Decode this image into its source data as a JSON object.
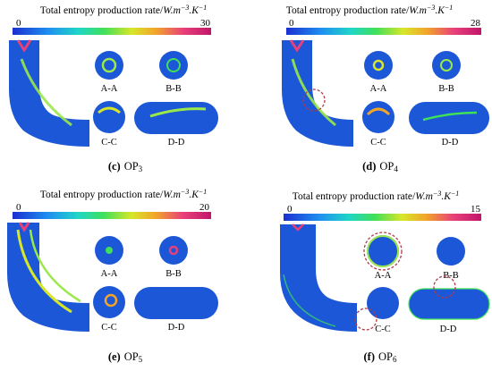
{
  "panels": [
    {
      "caption_letter": "(c)",
      "caption_name": "OP",
      "caption_sub": "3",
      "colorbar_title": "Total entropy production rate/",
      "colorbar_unit": "W.m",
      "colorbar_unit_exp1": "−3",
      "colorbar_unit_mid": ".K",
      "colorbar_unit_exp2": "−1",
      "min_label": "0",
      "max_label": "30",
      "section_labels": [
        "A-A",
        "B-B",
        "C-C",
        "D-D"
      ]
    },
    {
      "caption_letter": "(d)",
      "caption_name": "OP",
      "caption_sub": "4",
      "colorbar_title": "Total entropy production rate/",
      "colorbar_unit": "W.m",
      "colorbar_unit_exp1": "−3",
      "colorbar_unit_mid": ".K",
      "colorbar_unit_exp2": "−1",
      "min_label": "0",
      "max_label": "28",
      "section_labels": [
        "A-A",
        "B-B",
        "C-C",
        "D-D"
      ]
    },
    {
      "caption_letter": "(e)",
      "caption_name": "OP",
      "caption_sub": "5",
      "colorbar_title": "Total entropy production rate/",
      "colorbar_unit": "W.m",
      "colorbar_unit_exp1": "−3",
      "colorbar_unit_mid": ".K",
      "colorbar_unit_exp2": "−1",
      "min_label": "0",
      "max_label": "20",
      "section_labels": [
        "A-A",
        "B-B",
        "C-C",
        "D-D"
      ]
    },
    {
      "caption_letter": "(f)",
      "caption_name": "OP",
      "caption_sub": "6",
      "colorbar_title": "Total entropy production rate/",
      "colorbar_unit": "W.m",
      "colorbar_unit_exp1": "−3",
      "colorbar_unit_mid": ".K",
      "colorbar_unit_exp2": "−1",
      "min_label": "0",
      "max_label": "15",
      "section_labels": [
        "A-A",
        "B-B",
        "C-C",
        "D-D"
      ]
    }
  ],
  "colors": {
    "field_base": "#1b57d6",
    "colormap": [
      "#1a2fd0",
      "#1f8ff0",
      "#1fd6c8",
      "#3fe05a",
      "#d8e62a",
      "#f2a52a",
      "#e8407a",
      "#c0166a"
    ],
    "hotspot": "#9be84a",
    "circle_marker": "#b23a48"
  }
}
